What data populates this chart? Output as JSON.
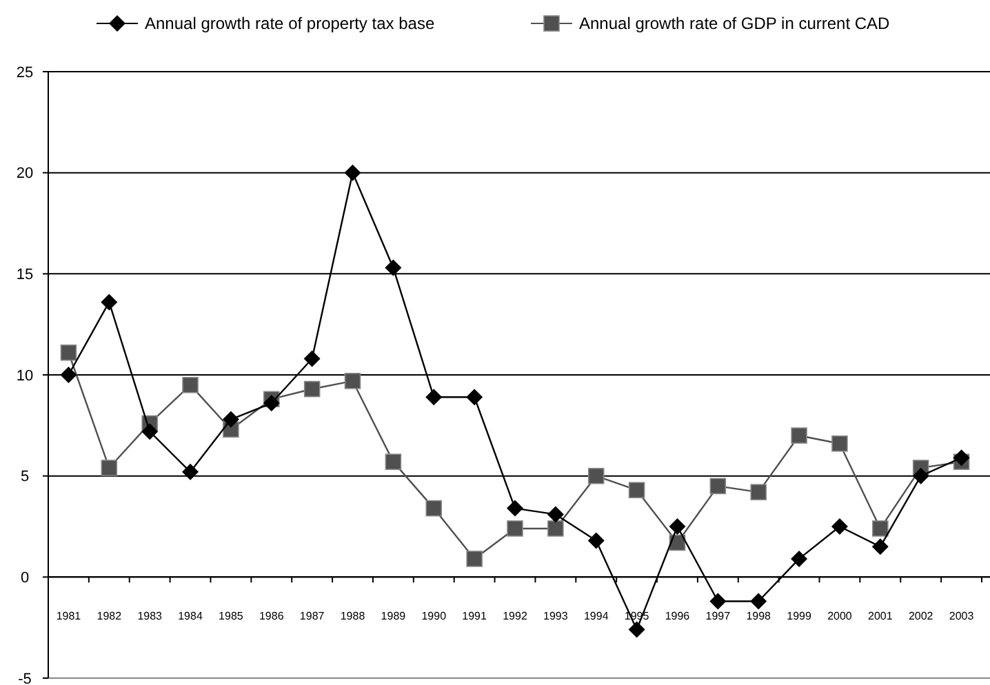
{
  "chart_data": {
    "type": "line",
    "categories": [
      "1981",
      "1982",
      "1983",
      "1984",
      "1985",
      "1986",
      "1987",
      "1988",
      "1989",
      "1990",
      "1991",
      "1992",
      "1993",
      "1994",
      "1995",
      "1996",
      "1997",
      "1998",
      "1999",
      "2000",
      "2001",
      "2002",
      "2003"
    ],
    "series": [
      {
        "name": "Annual growth rate of property tax base",
        "color": "#000000",
        "marker": "diamond",
        "values": [
          10,
          13.6,
          7.2,
          5.2,
          7.8,
          8.6,
          10.8,
          20,
          15.3,
          8.9,
          8.9,
          3.4,
          3.1,
          1.8,
          -2.6,
          2.5,
          -1.2,
          -1.2,
          0.9,
          2.5,
          1.5,
          5.0,
          5.9
        ]
      },
      {
        "name": "Annual growth rate of GDP in current CAD",
        "color": "#505050",
        "marker": "square",
        "values": [
          11.1,
          5.4,
          7.6,
          9.5,
          7.3,
          8.8,
          9.3,
          9.7,
          5.7,
          3.4,
          0.9,
          2.4,
          2.4,
          5.0,
          4.3,
          1.7,
          4.5,
          4.2,
          7.0,
          6.6,
          2.4,
          5.4,
          5.7
        ]
      }
    ],
    "ylim": [
      -5,
      25
    ],
    "yticks": [
      -5,
      0,
      5,
      10,
      15,
      20,
      25
    ],
    "grid": "y",
    "legend": "top"
  }
}
